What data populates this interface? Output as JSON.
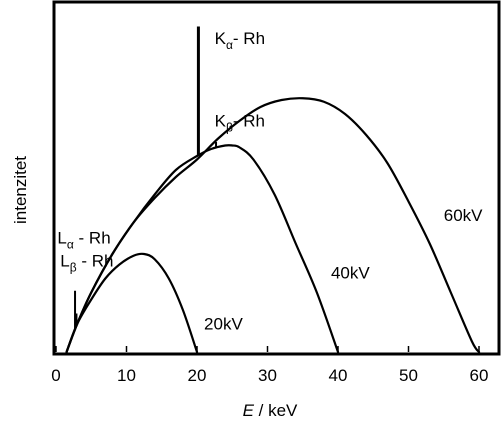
{
  "chart_data": {
    "type": "line",
    "xlabel_var": "E",
    "xlabel_unit": " / keV",
    "ylabel": "intenzitet",
    "xlim": [
      0,
      65
    ],
    "ylim": [
      0,
      1
    ],
    "xticks": [
      "0",
      "10",
      "20",
      "30",
      "40",
      "50",
      "60"
    ],
    "grid": false,
    "series": [
      {
        "name": "20kV",
        "x": [
          1.5,
          3,
          5,
          7,
          9,
          11,
          12.5,
          14,
          16,
          18,
          20
        ],
        "y": [
          0,
          0.08,
          0.15,
          0.21,
          0.25,
          0.275,
          0.28,
          0.265,
          0.21,
          0.12,
          0
        ]
      },
      {
        "name": "40kV",
        "x": [
          1.5,
          3,
          5,
          8,
          11,
          14,
          17,
          20,
          22,
          24,
          25,
          26,
          28,
          31,
          34,
          37,
          40
        ],
        "y": [
          0,
          0.08,
          0.17,
          0.28,
          0.37,
          0.45,
          0.52,
          0.56,
          0.58,
          0.59,
          0.59,
          0.585,
          0.55,
          0.45,
          0.31,
          0.17,
          0
        ]
      },
      {
        "name": "60kV",
        "x": [
          1.5,
          3,
          5,
          8,
          11,
          14,
          17,
          20,
          23,
          26,
          29,
          32,
          35,
          38,
          41,
          44,
          47,
          50,
          53,
          56,
          59,
          60
        ],
        "y": [
          0,
          0.08,
          0.17,
          0.28,
          0.37,
          0.44,
          0.5,
          0.55,
          0.61,
          0.66,
          0.7,
          0.72,
          0.725,
          0.715,
          0.68,
          0.62,
          0.54,
          0.43,
          0.31,
          0.17,
          0.03,
          0
        ]
      }
    ],
    "peaks": [
      {
        "x": 2.7,
        "y_top": 0.175,
        "label": "Lα - Rh"
      },
      {
        "x": 2.9,
        "y_top": 0.11,
        "label": "Lβ - Rh"
      },
      {
        "x": 20.2,
        "y_top": 0.93,
        "label": "Kα- Rh"
      },
      {
        "x": 22.7,
        "y_top": 0.6,
        "label": "Kβ- Rh"
      }
    ],
    "annotations": [
      {
        "text": "Kα- Rh",
        "base": "K",
        "sub": "α",
        "rest": "- Rh",
        "at": [
          22.5,
          0.88
        ]
      },
      {
        "text": "Kβ- Rh",
        "base": "K",
        "sub": "β",
        "rest": "- Rh",
        "at": [
          22.5,
          0.645
        ]
      },
      {
        "text": "Lα - Rh",
        "base": "L",
        "sub": "α",
        "rest": " - Rh",
        "at": [
          0.2,
          0.31
        ]
      },
      {
        "text": "Lβ - Rh",
        "base": "L",
        "sub": "β",
        "rest": " - Rh",
        "at": [
          0.6,
          0.245
        ]
      },
      {
        "text": "20kV",
        "base": "20kV",
        "sub": "",
        "rest": "",
        "at": [
          21,
          0.065
        ]
      },
      {
        "text": "40kV",
        "base": "40kV",
        "sub": "",
        "rest": "",
        "at": [
          39,
          0.21
        ]
      },
      {
        "text": "60kV",
        "base": "60kV",
        "sub": "",
        "rest": "",
        "at": [
          55,
          0.375
        ]
      }
    ]
  }
}
